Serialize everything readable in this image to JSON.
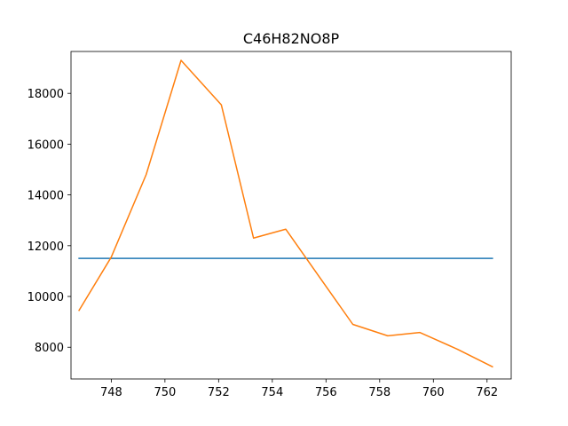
{
  "chart_data": {
    "type": "line",
    "title": "C46H82NO8P",
    "xlabel": "",
    "ylabel": "",
    "xlim": [
      746.5,
      762.9
    ],
    "ylim": [
      6750,
      19650
    ],
    "xticks": [
      748,
      750,
      752,
      754,
      756,
      758,
      760,
      762
    ],
    "yticks": [
      8000,
      10000,
      12000,
      14000,
      16000,
      18000
    ],
    "grid": false,
    "legend": null,
    "series": [
      {
        "color": "#1f77b4",
        "x": [
          746.8,
          762.2
        ],
        "y": [
          11500,
          11500
        ]
      },
      {
        "color": "#ff7f0e",
        "x": [
          746.8,
          748.0,
          749.3,
          750.6,
          752.1,
          753.3,
          754.5,
          755.8,
          757.0,
          758.3,
          759.5,
          760.9,
          762.2
        ],
        "y": [
          9450,
          11550,
          14800,
          19300,
          17550,
          12300,
          12650,
          10700,
          8900,
          8450,
          8580,
          7920,
          7230
        ]
      }
    ]
  }
}
